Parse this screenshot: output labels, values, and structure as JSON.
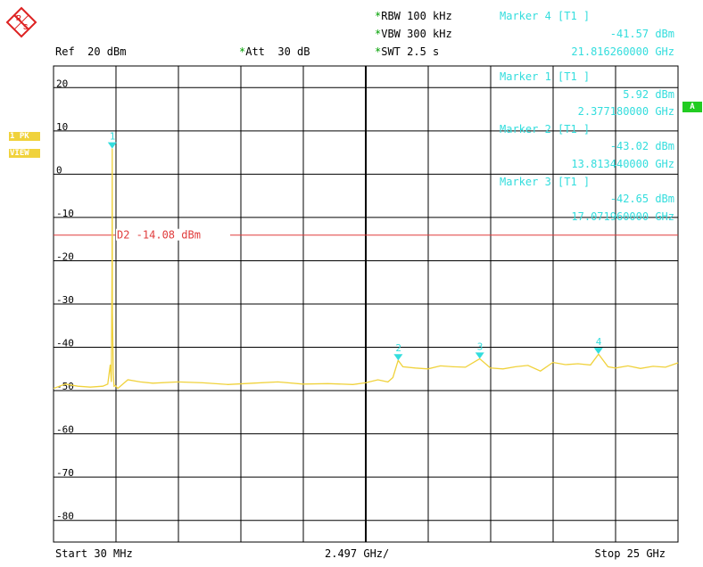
{
  "header": {
    "rbw": "RBW 100 kHz",
    "vbw": "VBW 300 kHz",
    "swt": "SWT 2.5 s",
    "ref": "Ref  20 dBm",
    "att": "Att  30 dB",
    "marker4_title": "Marker 4 [T1 ]",
    "marker4_level": "-41.57 dBm",
    "marker4_freq": "21.816260000 GHz"
  },
  "side": {
    "trace_label_1": "1 PK",
    "trace_label_2": "VIEW",
    "badge": "A"
  },
  "marker_box": [
    {
      "title": "Marker 1 [T1 ]",
      "level": "5.92 dBm",
      "freq": "2.377180000 GHz"
    },
    {
      "title": "Marker 2 [T1 ]",
      "level": "-43.02 dBm",
      "freq": "13.813440000 GHz"
    },
    {
      "title": "Marker 3 [T1 ]",
      "level": "-42.65 dBm",
      "freq": "17.071960000 GHz"
    }
  ],
  "footer": {
    "start": "Start 30 MHz",
    "span": "2.497 GHz/",
    "stop": "Stop 25 GHz"
  },
  "colors": {
    "trace": "#f0d23c",
    "marker": "#33dddd",
    "display_line": "#e03c3c",
    "grid": "#000000"
  },
  "chart_data": {
    "type": "line",
    "xlim": [
      0.03,
      25
    ],
    "ylim": [
      -85,
      25
    ],
    "x_unit": "GHz",
    "y_unit": "dBm",
    "ytick_values": [
      20,
      10,
      0,
      -10,
      -20,
      -30,
      -40,
      -50,
      -60,
      -70,
      -80
    ],
    "ytick_labels": [
      "20",
      "10",
      "0",
      "-10",
      "-20",
      "-30",
      "-40",
      "-50",
      "-60",
      "-70",
      "-80"
    ],
    "display_line": {
      "label": "D2 -14.08 dBm",
      "value": -14.08
    },
    "markers": [
      {
        "id": "1",
        "x": 2.37718,
        "y": 5.92
      },
      {
        "id": "2",
        "x": 13.81344,
        "y": -43.02
      },
      {
        "id": "3",
        "x": 17.07196,
        "y": -42.65
      },
      {
        "id": "4",
        "x": 21.81626,
        "y": -41.57
      }
    ],
    "trace": {
      "x": [
        0.03,
        0.5,
        1.0,
        1.5,
        2.0,
        2.2,
        2.3,
        2.34,
        2.37,
        2.377,
        2.385,
        2.42,
        2.45,
        2.5,
        2.6,
        3.0,
        3.5,
        4.0,
        5.0,
        6.0,
        7.0,
        8.0,
        9.0,
        10.0,
        11.0,
        12.0,
        12.5,
        13.0,
        13.4,
        13.6,
        13.81,
        14.0,
        14.5,
        15.0,
        15.5,
        16.0,
        16.5,
        17.07,
        17.5,
        18.0,
        18.5,
        19.0,
        19.5,
        20.0,
        20.5,
        21.0,
        21.5,
        21.82,
        22.2,
        22.5,
        23.0,
        23.5,
        24.0,
        24.5,
        25.0
      ],
      "y": [
        -49.5,
        -48.5,
        -49.0,
        -49.2,
        -49.0,
        -48.5,
        -44.0,
        -48.0,
        -20.0,
        5.92,
        -32.0,
        -46.0,
        -49.0,
        -48.8,
        -49.5,
        -47.5,
        -48.0,
        -48.3,
        -48.0,
        -48.2,
        -48.6,
        -48.3,
        -48.0,
        -48.5,
        -48.4,
        -48.6,
        -48.2,
        -47.5,
        -48.0,
        -47.0,
        -43.02,
        -44.5,
        -44.8,
        -45.0,
        -44.3,
        -44.5,
        -44.6,
        -42.65,
        -44.8,
        -45.0,
        -44.5,
        -44.2,
        -45.5,
        -43.5,
        -44.0,
        -43.8,
        -44.1,
        -41.57,
        -44.5,
        -44.8,
        -44.3,
        -44.9,
        -44.4,
        -44.6,
        -43.6
      ]
    }
  }
}
